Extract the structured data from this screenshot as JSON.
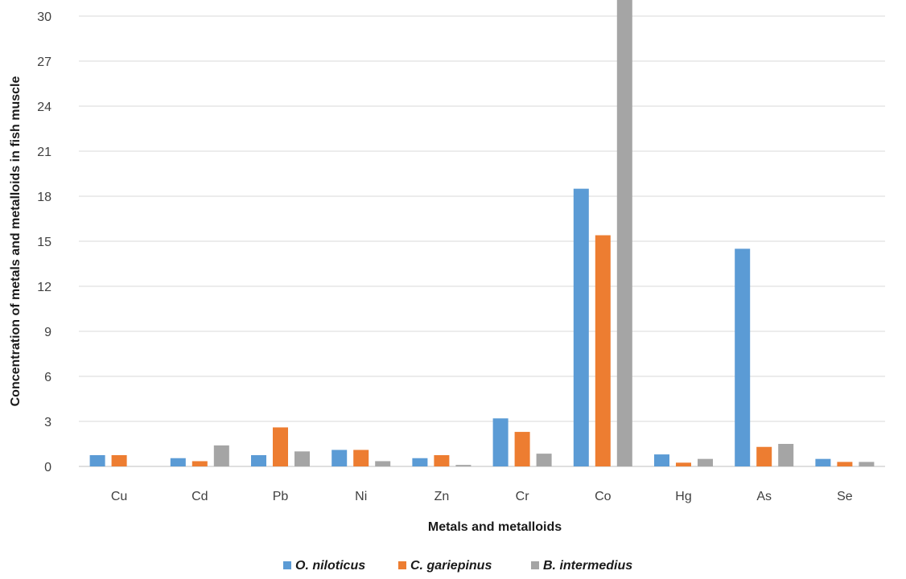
{
  "chart_data": {
    "type": "bar",
    "title": "",
    "xlabel": "Metals and metalloids",
    "ylabel": "Concentration of metals and metalloids in fish  muscle",
    "categories": [
      "Cu",
      "Cd",
      "Pb",
      "Ni",
      "Zn",
      "Cr",
      "Co",
      "Hg",
      "As",
      "Se"
    ],
    "ylim": [
      0,
      30
    ],
    "yticks": [
      0,
      3,
      6,
      9,
      12,
      15,
      18,
      21,
      24,
      27,
      30
    ],
    "grid": true,
    "legend_position": "bottom",
    "series": [
      {
        "name": "O. niloticus",
        "color": "#5B9BD5",
        "values": [
          0.75,
          0.55,
          0.75,
          1.1,
          0.55,
          3.2,
          18.5,
          0.8,
          14.5,
          0.5
        ]
      },
      {
        "name": "C. gariepinus",
        "color": "#ED7D31",
        "values": [
          0.75,
          0.35,
          2.6,
          1.1,
          0.75,
          2.3,
          15.4,
          0.25,
          1.3,
          0.3
        ]
      },
      {
        "name": "B. intermedius",
        "color": "#A5A5A5",
        "values": [
          0,
          1.4,
          1.0,
          0.35,
          0.1,
          0.85,
          31.5,
          0.5,
          1.5,
          0.3
        ]
      }
    ]
  }
}
